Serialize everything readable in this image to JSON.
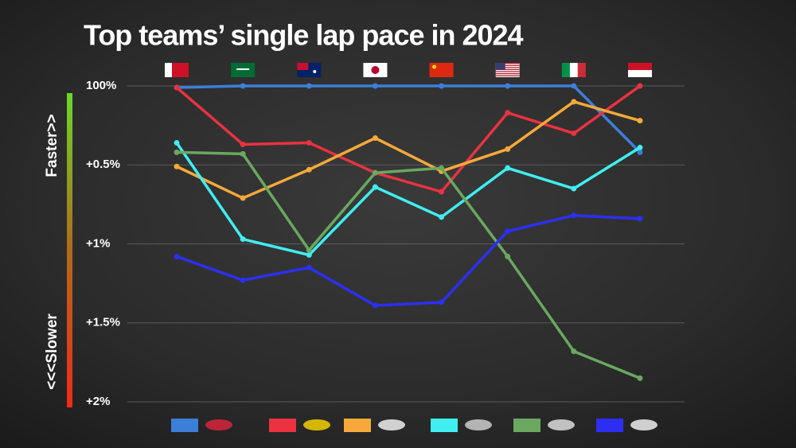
{
  "chart_data": {
    "type": "line",
    "title": "Top teams’ single lap pace in 2024",
    "faster_label": "Faster>>",
    "slower_label": "<<<Slower",
    "categories": [
      null,
      null,
      null,
      null,
      null,
      null,
      null,
      null
    ],
    "ylim": [
      2,
      0
    ],
    "yticks": [
      {
        "value": 0,
        "label": "100%"
      },
      {
        "value": 0.5,
        "label": "+0.5%"
      },
      {
        "value": 1,
        "label": "+1%"
      },
      {
        "value": 1.5,
        "label": "+1.5%"
      },
      {
        "value": 2,
        "label": "+2%"
      }
    ],
    "grid": true,
    "series": [
      {
        "color": "#3c7fd8",
        "values": [
          0.01,
          0,
          0,
          0,
          0,
          0,
          0,
          0.42
        ]
      },
      {
        "color": "#ea3240",
        "values": [
          0.01,
          0.37,
          0.36,
          0.55,
          0.67,
          0.17,
          0.3,
          0
        ]
      },
      {
        "color": "#f6a93a",
        "values": [
          0.51,
          0.71,
          0.53,
          0.33,
          0.54,
          0.4,
          0.1,
          0.22
        ]
      },
      {
        "color": "#40eef0",
        "values": [
          0.36,
          0.97,
          1.07,
          0.64,
          0.83,
          0.52,
          0.65,
          0.39
        ]
      },
      {
        "color": "#6aa860",
        "values": [
          0.42,
          0.43,
          1.04,
          0.55,
          0.52,
          1.08,
          1.68,
          1.85
        ]
      },
      {
        "color": "#2c2ff2",
        "values": [
          1.08,
          1.23,
          1.15,
          1.39,
          1.37,
          0.92,
          0.82,
          0.84
        ]
      }
    ]
  }
}
